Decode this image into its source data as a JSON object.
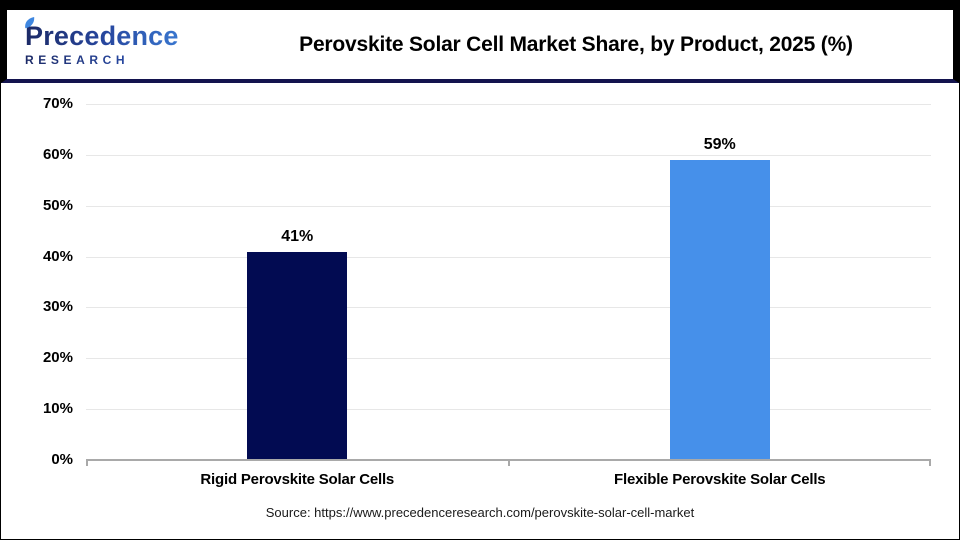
{
  "header": {
    "logo": {
      "name": "Precedence",
      "subname": "RESEARCH"
    },
    "title": "Perovskite Solar Cell Market Share, by Product, 2025 (%)"
  },
  "chart_data": {
    "type": "bar",
    "title": "Perovskite Solar Cell Market Share, by Product, 2025 (%)",
    "categories": [
      "Rigid Perovskite Solar Cells",
      "Flexible Perovskite Solar Cells"
    ],
    "values": [
      41,
      59
    ],
    "data_labels": [
      "41%",
      "59%"
    ],
    "bar_colors": [
      "#020b52",
      "#4690ea"
    ],
    "ylim": [
      0,
      70
    ],
    "ytick_step": 10,
    "yticks": [
      "0%",
      "10%",
      "20%",
      "30%",
      "40%",
      "50%",
      "60%",
      "70%"
    ],
    "grid": true,
    "legend_position": "none",
    "xlabel": "",
    "ylabel": ""
  },
  "footer": {
    "source_text": "Source: https://www.precedenceresearch.com/perovskite-solar-cell-market"
  },
  "colors": {
    "bar_rigid": "#020b52",
    "bar_flexible": "#4690ea",
    "header_divider": "#13134e",
    "frame_border": "#000000",
    "gridline": "#e7e7e7",
    "axis": "#a9a9a9",
    "logo_navy": "#1c2a66",
    "logo_blue": "#3f87e0"
  }
}
